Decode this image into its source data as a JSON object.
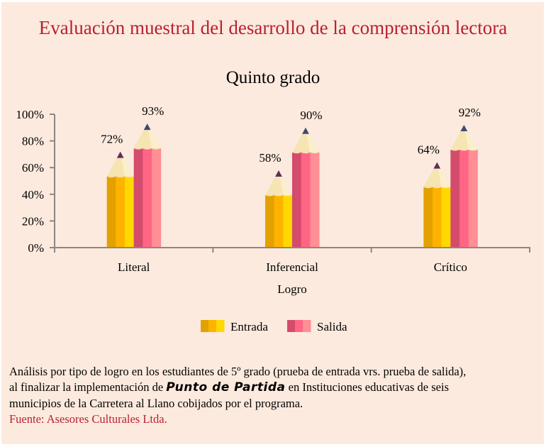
{
  "header": {
    "title": "Evaluación muestral del desarrollo de la comprensión lectora"
  },
  "chart_data": {
    "type": "bar",
    "title": "Quinto grado",
    "xlabel": "Logro",
    "ylabel": "",
    "categories": [
      "Literal",
      "Inferencial",
      "Crítico"
    ],
    "series": [
      {
        "name": "Entrada",
        "values": [
          72,
          58,
          64
        ],
        "labels": [
          "72%",
          "58%",
          "64%"
        ],
        "colors": [
          "#E3A100",
          "#FFB300",
          "#FFD800"
        ],
        "tip_color": "#5E2E5E"
      },
      {
        "name": "Salida",
        "values": [
          93,
          90,
          92
        ],
        "labels": [
          "93%",
          "90%",
          "92%"
        ],
        "colors": [
          "#D44B6C",
          "#FF6585",
          "#FF8E95"
        ],
        "tip_color": "#3E4A72"
      }
    ],
    "ylim": [
      0,
      100
    ],
    "yticks": [
      "0%",
      "20%",
      "40%",
      "60%",
      "80%",
      "100%"
    ],
    "ytick_values": [
      0,
      20,
      40,
      60,
      80,
      100
    ],
    "grid": false,
    "legend": "bottom-center"
  },
  "description": {
    "line1": "Análisis por tipo de logro en los estudiantes de 5º grado (prueba de entrada vrs. prueba de salida),",
    "line2_prefix": "al finalizar la implementación de ",
    "brand": "Punto de Partida",
    "line2_suffix": " en Instituciones educativas de seis",
    "line3": "municipios de la Carretera al Llano cobijados por el programa.",
    "source": "Fuente: Asesores Culturales Ltda."
  },
  "colors": {
    "background": "#FDEADE",
    "title": "#B8202F",
    "axis": "#8C8782",
    "pencil_wood": "#F6E4B2"
  }
}
